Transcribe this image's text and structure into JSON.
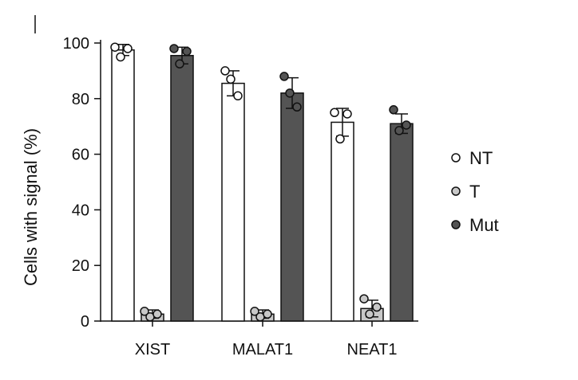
{
  "chart_data": {
    "type": "bar",
    "ylabel": "Cells with signal (%)",
    "ylim": [
      0,
      100
    ],
    "yticks": [
      0,
      20,
      40,
      60,
      80,
      100
    ],
    "categories": [
      "XIST",
      "MALAT1",
      "NEAT1"
    ],
    "series": [
      {
        "name": "NT",
        "color": "#ffffff",
        "values": [
          97.5,
          85.5,
          71.5
        ],
        "errors": [
          2,
          4.5,
          5
        ],
        "points": [
          [
            98.5,
            95,
            98
          ],
          [
            90,
            87,
            81
          ],
          [
            75,
            65.5,
            74.5
          ]
        ]
      },
      {
        "name": "T",
        "color": "#c8c8c8",
        "values": [
          2.5,
          2.5,
          4.5
        ],
        "errors": [
          1.5,
          1.5,
          3
        ],
        "points": [
          [
            3.5,
            1.5,
            2.5
          ],
          [
            3.5,
            1.5,
            2.5
          ],
          [
            8,
            2.5,
            5
          ]
        ]
      },
      {
        "name": "Mut",
        "color": "#545454",
        "values": [
          95.5,
          82,
          71
        ],
        "errors": [
          3,
          5.5,
          3.5
        ],
        "points": [
          [
            98,
            92.5,
            97
          ],
          [
            88,
            82,
            77
          ],
          [
            76,
            68.5,
            70.5
          ]
        ]
      }
    ],
    "legend": {
      "placement": "right"
    }
  }
}
